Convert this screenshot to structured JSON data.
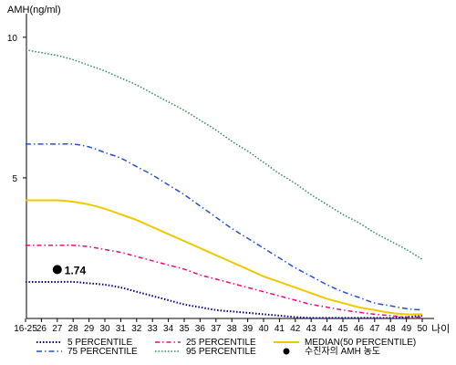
{
  "chart_data": {
    "type": "line",
    "ylabel": "AMH(ng/ml)",
    "xlabel": "나이",
    "ylim": [
      0,
      11
    ],
    "yticks": [
      5,
      10
    ],
    "categories": [
      "16-25",
      "26",
      "27",
      "28",
      "29",
      "30",
      "31",
      "32",
      "33",
      "34",
      "35",
      "36",
      "37",
      "38",
      "39",
      "40",
      "41",
      "42",
      "43",
      "44",
      "45",
      "46",
      "47",
      "48",
      "49",
      "50"
    ],
    "series": [
      {
        "name": "5 PERCENTILE",
        "color": "#000080",
        "dash": "1.5,2",
        "width": 2,
        "values": [
          1.3,
          1.3,
          1.3,
          1.3,
          1.25,
          1.2,
          1.1,
          0.95,
          0.8,
          0.65,
          0.5,
          0.4,
          0.3,
          0.25,
          0.2,
          0.15,
          0.1,
          0.05,
          0.02,
          0.02,
          0.02,
          0.02,
          0.02,
          0.02,
          0.05,
          0.1
        ]
      },
      {
        "name": "25 PERCENTILE",
        "color": "#e0107f",
        "dash": "5,3,1.5,3",
        "width": 1.5,
        "values": [
          2.6,
          2.6,
          2.6,
          2.6,
          2.55,
          2.45,
          2.35,
          2.2,
          2.05,
          1.9,
          1.75,
          1.55,
          1.4,
          1.25,
          1.1,
          0.95,
          0.8,
          0.65,
          0.5,
          0.4,
          0.3,
          0.22,
          0.15,
          0.1,
          0.05,
          0.05
        ]
      },
      {
        "name": "MEDIAN(50 PERCENTILE)",
        "color": "#f0c800",
        "dash": "",
        "width": 2,
        "values": [
          4.2,
          4.2,
          4.2,
          4.15,
          4.05,
          3.9,
          3.7,
          3.5,
          3.25,
          3.0,
          2.75,
          2.5,
          2.25,
          2.0,
          1.75,
          1.5,
          1.3,
          1.1,
          0.9,
          0.7,
          0.55,
          0.4,
          0.3,
          0.2,
          0.15,
          0.15
        ]
      },
      {
        "name": "75 PERCENTILE",
        "color": "#2850c8",
        "dash": "6,3,1.5,3",
        "width": 1.5,
        "values": [
          6.2,
          6.2,
          6.2,
          6.2,
          6.1,
          5.9,
          5.7,
          5.4,
          5.1,
          4.75,
          4.4,
          4.0,
          3.6,
          3.2,
          2.85,
          2.5,
          2.15,
          1.8,
          1.5,
          1.2,
          0.95,
          0.75,
          0.55,
          0.45,
          0.35,
          0.3
        ]
      },
      {
        "name": "95 PERCENTILE",
        "color": "#2e8b57",
        "dash": "1.5,2",
        "width": 1.5,
        "values": [
          9.55,
          9.45,
          9.35,
          9.2,
          9.0,
          8.8,
          8.55,
          8.3,
          8.0,
          7.7,
          7.4,
          7.05,
          6.7,
          6.3,
          5.95,
          5.55,
          5.15,
          4.8,
          4.4,
          4.05,
          3.7,
          3.4,
          3.05,
          2.75,
          2.45,
          2.1
        ]
      }
    ],
    "marker": {
      "category": "27",
      "value": 1.74,
      "label": "1.74",
      "legend": "수진자의 AMH 농도",
      "color": "#000000"
    },
    "legend_layout": "bottom, three columns"
  }
}
